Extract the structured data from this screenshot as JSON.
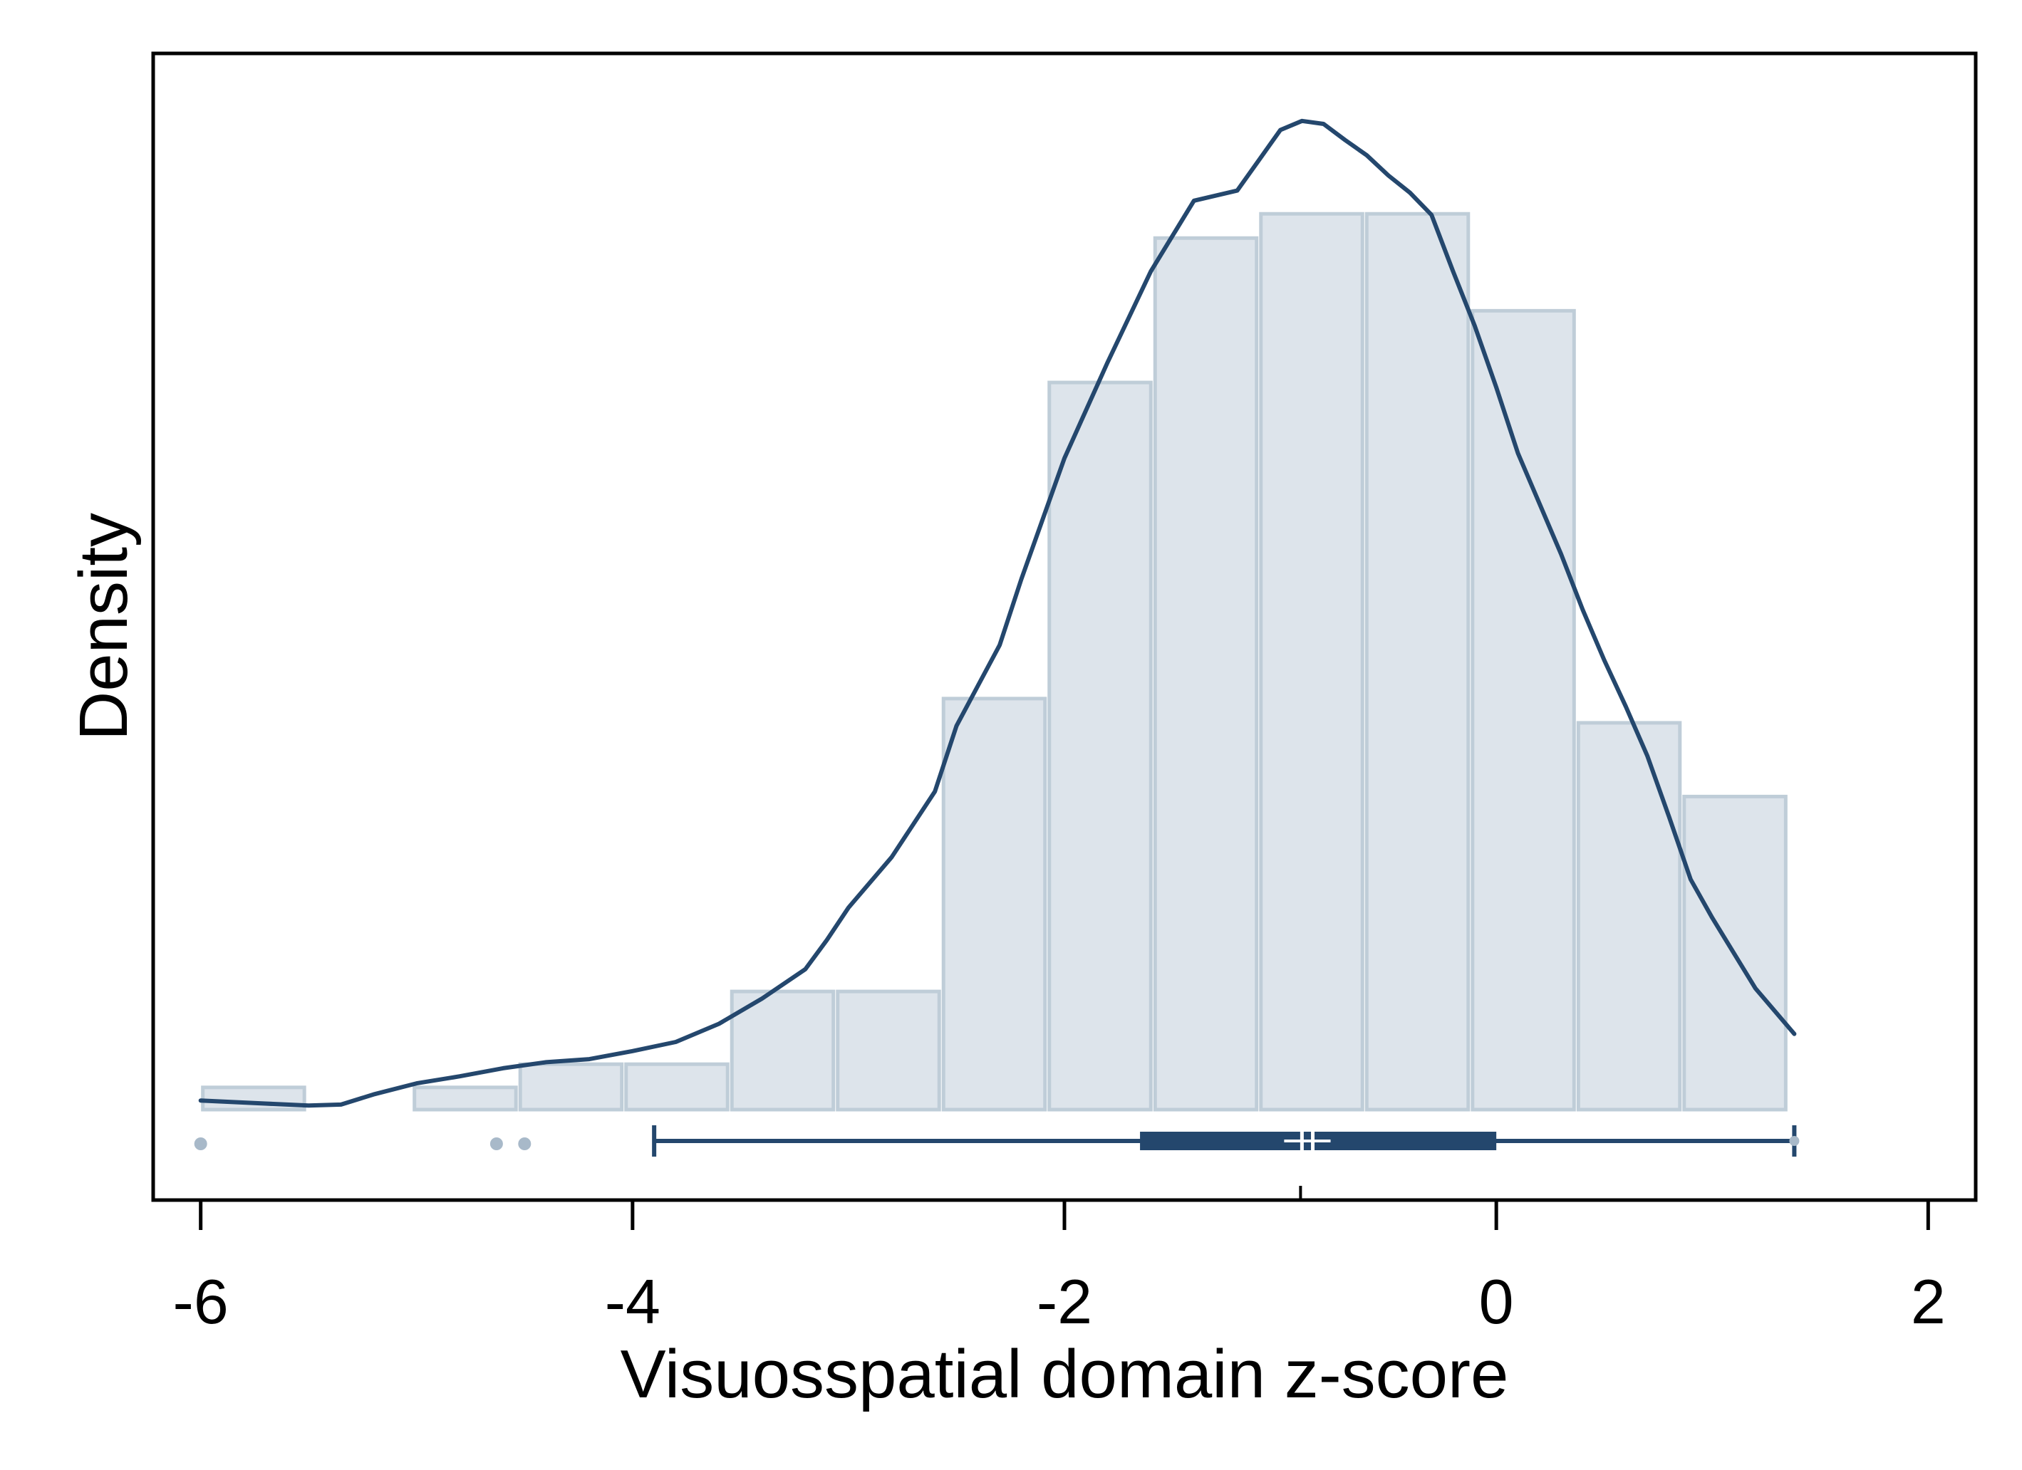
{
  "chart_data": {
    "type": "histogram",
    "title": "",
    "xlabel": "Visuosspatial domain z-score",
    "ylabel": "Density",
    "xlim": [
      -6.22,
      2.22
    ],
    "x_ticks": [
      -6,
      -4,
      -2,
      0,
      2
    ],
    "x_tick_labels": [
      "-6",
      "-4",
      "-2",
      "0",
      "2"
    ],
    "y_ticks_shown": false,
    "grid": false,
    "histogram": {
      "bin_width": 0.49,
      "bins": [
        {
          "start": -6.0,
          "height": 0.022
        },
        {
          "start": -5.02,
          "height": 0.022
        },
        {
          "start": -4.53,
          "height": 0.045
        },
        {
          "start": -4.04,
          "height": 0.045
        },
        {
          "start": -3.55,
          "height": 0.117
        },
        {
          "start": -3.06,
          "height": 0.117
        },
        {
          "start": -2.57,
          "height": 0.407
        },
        {
          "start": -2.08,
          "height": 0.72
        },
        {
          "start": -1.59,
          "height": 0.863
        },
        {
          "start": -1.1,
          "height": 0.887
        },
        {
          "start": -0.61,
          "height": 0.887
        },
        {
          "start": -0.12,
          "height": 0.791
        },
        {
          "start": 0.37,
          "height": 0.383
        },
        {
          "start": 0.86,
          "height": 0.31
        }
      ],
      "fill_color": "#dde4eb",
      "edge_color": "#bfcdd8"
    },
    "density_curve": {
      "color": "#24476d",
      "x": [
        -6.0,
        -5.7,
        -5.5,
        -5.35,
        -5.2,
        -5.0,
        -4.8,
        -4.6,
        -4.4,
        -4.2,
        -4.0,
        -3.8,
        -3.6,
        -3.4,
        -3.2,
        -3.1,
        -3.0,
        -2.8,
        -2.6,
        -2.5,
        -2.4,
        -2.3,
        -2.2,
        -2.0,
        -1.8,
        -1.6,
        -1.4,
        -1.2,
        -1.1,
        -1.0,
        -0.9,
        -0.8,
        -0.7,
        -0.6,
        -0.5,
        -0.4,
        -0.3,
        -0.2,
        -0.1,
        0.0,
        0.1,
        0.2,
        0.3,
        0.4,
        0.5,
        0.6,
        0.7,
        0.8,
        0.9,
        1.0,
        1.2,
        1.38
      ],
      "y": [
        0.009,
        0.006,
        0.004,
        0.005,
        0.015,
        0.026,
        0.033,
        0.041,
        0.047,
        0.05,
        0.058,
        0.067,
        0.085,
        0.11,
        0.139,
        0.168,
        0.2,
        0.25,
        0.315,
        0.38,
        0.42,
        0.46,
        0.525,
        0.645,
        0.74,
        0.83,
        0.9,
        0.91,
        0.94,
        0.97,
        0.979,
        0.976,
        0.96,
        0.945,
        0.925,
        0.908,
        0.886,
        0.83,
        0.776,
        0.715,
        0.65,
        0.6,
        0.55,
        0.495,
        0.445,
        0.399,
        0.35,
        0.29,
        0.228,
        0.19,
        0.12,
        0.075
      ]
    },
    "boxplot": {
      "whisker_low": -3.9,
      "q1": -1.65,
      "median": -0.9,
      "mean": -0.85,
      "q3": 0.0,
      "whisker_high": 1.38,
      "outliers": [
        -6.0,
        -4.63,
        -4.5
      ],
      "color": "#24476d",
      "outlier_color": "#a8b9c9"
    }
  }
}
